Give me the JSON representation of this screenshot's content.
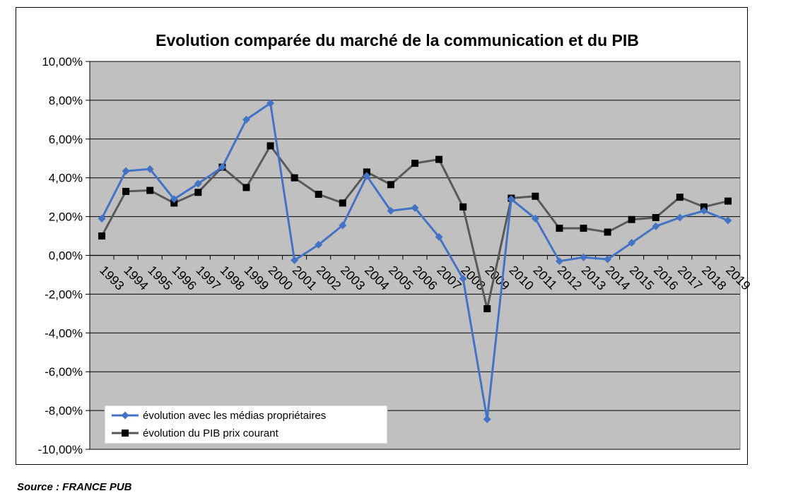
{
  "chart_data": {
    "type": "line",
    "title": "Evolution comparée du marché de la communication  et du PIB",
    "categories": [
      "1993",
      "1994",
      "1995",
      "1996",
      "1997",
      "1998",
      "1999",
      "2000",
      "2001",
      "2002",
      "2003",
      "2004",
      "2005",
      "2006",
      "2007",
      "2008",
      "2009",
      "2010",
      "2011",
      "2012",
      "2013",
      "2014",
      "2015",
      "2016",
      "2017",
      "2018",
      "2019"
    ],
    "y_ticks": [
      "10,00%",
      "8,00%",
      "6,00%",
      "4,00%",
      "2,00%",
      "0,00%",
      "-2,00%",
      "-4,00%",
      "-6,00%",
      "-8,00%",
      "-10,00%"
    ],
    "ylim": [
      -10,
      10
    ],
    "grid": true,
    "legend_position": "bottom-left",
    "series": [
      {
        "name": "évolution avec les médias propriétaires",
        "color": "#4472C4",
        "marker": "diamond",
        "values": [
          1.9,
          4.35,
          4.45,
          2.9,
          3.7,
          4.55,
          7.0,
          7.85,
          -0.25,
          0.55,
          1.55,
          4.1,
          2.3,
          2.45,
          0.95,
          -1.2,
          -8.45,
          2.9,
          1.9,
          -0.3,
          -0.1,
          -0.2,
          0.65,
          1.5,
          1.95,
          2.3,
          1.8
        ]
      },
      {
        "name": "évolution du PIB prix courant",
        "color": "#595959",
        "marker": "square",
        "values": [
          1.0,
          3.3,
          3.35,
          2.7,
          3.25,
          4.55,
          3.5,
          5.65,
          4.0,
          3.15,
          2.7,
          4.3,
          3.65,
          4.75,
          4.95,
          2.5,
          -2.75,
          2.95,
          3.05,
          1.4,
          1.4,
          1.2,
          1.85,
          1.95,
          3.0,
          2.5,
          2.8
        ]
      }
    ]
  },
  "source": "Source : FRANCE PUB"
}
